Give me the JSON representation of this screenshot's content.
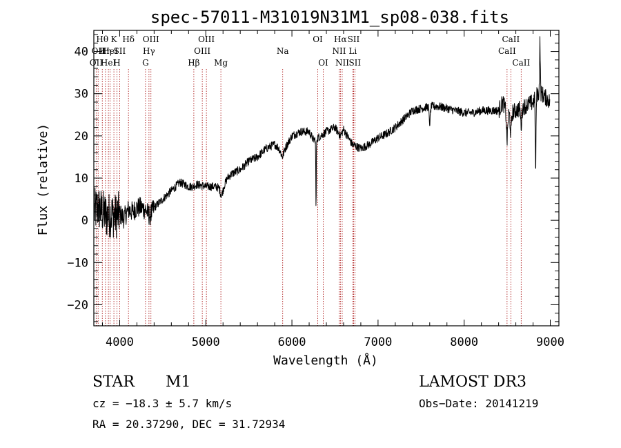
{
  "chart_data": {
    "type": "line",
    "title": "spec-57011-M31019N31M1_sp08-038.fits",
    "xlabel": "Wavelength (Å)",
    "ylabel": "Flux (relative)",
    "xlim": [
      3700,
      9100
    ],
    "ylim": [
      -25,
      45
    ],
    "xticks": [
      4000,
      5000,
      6000,
      7000,
      8000,
      9000
    ],
    "yticks": [
      -20,
      -10,
      0,
      10,
      20,
      30,
      40
    ],
    "ytick_labels": [
      "−20",
      "−10",
      "0",
      "10",
      "20",
      "30",
      "40"
    ],
    "spectrum_anchors": [
      [
        3700,
        2
      ],
      [
        3750,
        3
      ],
      [
        3800,
        2
      ],
      [
        3850,
        1
      ],
      [
        3900,
        1.5
      ],
      [
        3950,
        1
      ],
      [
        4000,
        1.5
      ],
      [
        4050,
        0.5
      ],
      [
        4100,
        2.5
      ],
      [
        4150,
        2
      ],
      [
        4200,
        3
      ],
      [
        4250,
        3
      ],
      [
        4300,
        2.5
      ],
      [
        4350,
        1
      ],
      [
        4400,
        3
      ],
      [
        4500,
        5
      ],
      [
        4600,
        7
      ],
      [
        4700,
        9
      ],
      [
        4750,
        8.5
      ],
      [
        4800,
        8
      ],
      [
        4850,
        8
      ],
      [
        4900,
        8.5
      ],
      [
        5000,
        8
      ],
      [
        5100,
        8
      ],
      [
        5200,
        7.5
      ],
      [
        5250,
        10
      ],
      [
        5300,
        11
      ],
      [
        5400,
        12
      ],
      [
        5500,
        14
      ],
      [
        5600,
        15
      ],
      [
        5700,
        17
      ],
      [
        5800,
        18
      ],
      [
        5850,
        17
      ],
      [
        5890,
        15
      ],
      [
        5920,
        17
      ],
      [
        6000,
        20
      ],
      [
        6100,
        21
      ],
      [
        6200,
        21
      ],
      [
        6250,
        19
      ],
      [
        6300,
        19.5
      ],
      [
        6400,
        21
      ],
      [
        6500,
        22
      ],
      [
        6563,
        20
      ],
      [
        6600,
        21.5
      ],
      [
        6700,
        18
      ],
      [
        6800,
        17
      ],
      [
        6900,
        18
      ],
      [
        7000,
        19.5
      ],
      [
        7100,
        20.5
      ],
      [
        7200,
        22
      ],
      [
        7300,
        24
      ],
      [
        7400,
        26
      ],
      [
        7500,
        26.5
      ],
      [
        7600,
        27
      ],
      [
        7700,
        27
      ],
      [
        7800,
        26.5
      ],
      [
        7900,
        26
      ],
      [
        8000,
        25.5
      ],
      [
        8100,
        25.5
      ],
      [
        8200,
        26
      ],
      [
        8300,
        26
      ],
      [
        8400,
        26
      ],
      [
        8450,
        28
      ],
      [
        8500,
        25
      ],
      [
        8600,
        26
      ],
      [
        8700,
        27
      ],
      [
        8800,
        28
      ],
      [
        8850,
        30
      ],
      [
        8900,
        30
      ],
      [
        9000,
        28
      ]
    ],
    "spectrum_features": [
      {
        "x": 5180,
        "depth": 1.5,
        "width": 18
      },
      {
        "x": 6280,
        "depth": 17,
        "width": 4
      },
      {
        "x": 7600,
        "depth": 4,
        "width": 10
      },
      {
        "x": 8498,
        "depth": 6,
        "width": 10
      },
      {
        "x": 8542,
        "depth": 5,
        "width": 10
      },
      {
        "x": 8662,
        "depth": 4,
        "width": 10
      },
      {
        "x": 8830,
        "depth": 18,
        "width": 6
      },
      {
        "x": 8880,
        "depth": -12,
        "width": 6
      }
    ],
    "line_markers": [
      {
        "wl": 3727,
        "row": 2,
        "label": "OII"
      },
      {
        "wl": 3750,
        "row": 1,
        "label": "OII"
      },
      {
        "wl": 3798,
        "row": 0,
        "label": "Hθ"
      },
      {
        "wl": 3835,
        "row": 1,
        "label": "Hη"
      },
      {
        "wl": 3869,
        "row": 2,
        "label": "HeI"
      },
      {
        "wl": 3889,
        "row": 1,
        "label": "HeI"
      },
      {
        "wl": 3933,
        "row": 0,
        "label": "K"
      },
      {
        "wl": 3968,
        "row": 2,
        "label": "H"
      },
      {
        "wl": 4000,
        "row": 1,
        "label": "SII"
      },
      {
        "wl": 4102,
        "row": 0,
        "label": "Hδ"
      },
      {
        "wl": 4300,
        "row": 2,
        "label": "G"
      },
      {
        "wl": 4340,
        "row": 1,
        "label": "Hγ"
      },
      {
        "wl": 4363,
        "row": 0,
        "label": "OIII"
      },
      {
        "wl": 4861,
        "row": 2,
        "label": "Hβ"
      },
      {
        "wl": 4959,
        "row": 1,
        "label": "OIII"
      },
      {
        "wl": 5007,
        "row": 0,
        "label": "OIII"
      },
      {
        "wl": 5175,
        "row": 2,
        "label": "Mg"
      },
      {
        "wl": 5893,
        "row": 1,
        "label": "Na"
      },
      {
        "wl": 6300,
        "row": 0,
        "label": "OI"
      },
      {
        "wl": 6364,
        "row": 2,
        "label": "OI"
      },
      {
        "wl": 6548,
        "row": 1,
        "label": "NII"
      },
      {
        "wl": 6563,
        "row": 0,
        "label": "Hα"
      },
      {
        "wl": 6584,
        "row": 2,
        "label": "NII"
      },
      {
        "wl": 6707,
        "row": 1,
        "label": "Li"
      },
      {
        "wl": 6716,
        "row": 0,
        "label": "SII"
      },
      {
        "wl": 6731,
        "row": 2,
        "label": "SII"
      },
      {
        "wl": 8498,
        "row": 1,
        "label": "CaII"
      },
      {
        "wl": 8542,
        "row": 0,
        "label": "CaII"
      },
      {
        "wl": 8662,
        "row": 2,
        "label": "CaII"
      }
    ]
  },
  "info": {
    "class": "STAR",
    "subclass": "M1",
    "survey": "LAMOST DR3",
    "cz": "cz = −18.3 ± 5.7 km/s",
    "obs_date": "Obs−Date: 20141219",
    "coords": "RA =  20.37290, DEC =  31.72934"
  }
}
